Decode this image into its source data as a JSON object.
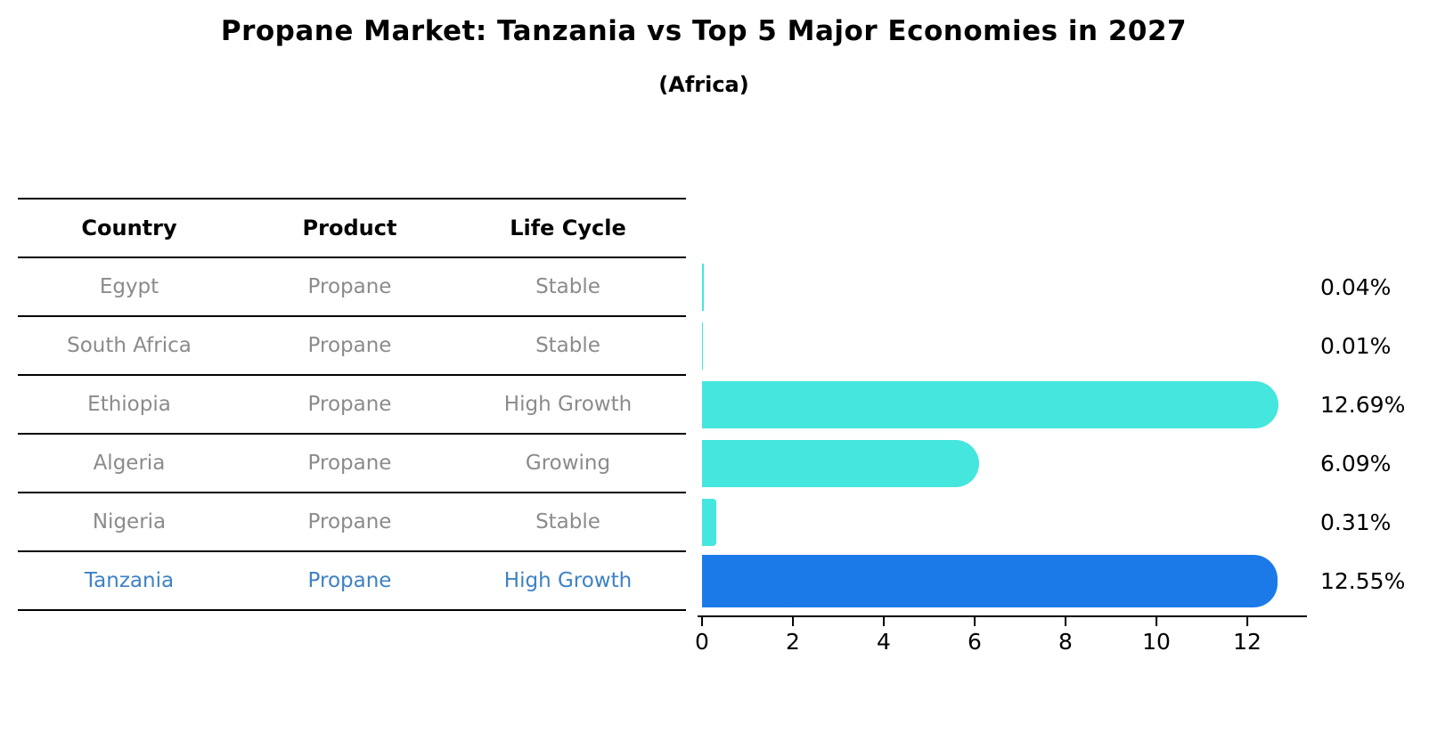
{
  "header": {
    "title": "Propane Market: Tanzania vs Top 5 Major Economies in 2027",
    "subtitle": "(Africa)"
  },
  "table": {
    "columns": [
      "Country",
      "Product",
      "Life Cycle"
    ],
    "rows": [
      {
        "country": "Egypt",
        "product": "Propane",
        "life_cycle": "Stable",
        "highlight": false
      },
      {
        "country": "South Africa",
        "product": "Propane",
        "life_cycle": "Stable",
        "highlight": false
      },
      {
        "country": "Ethiopia",
        "product": "Propane",
        "life_cycle": "High Growth",
        "highlight": false
      },
      {
        "country": "Algeria",
        "product": "Propane",
        "life_cycle": "Growing",
        "highlight": false
      },
      {
        "country": "Nigeria",
        "product": "Propane",
        "life_cycle": "Stable",
        "highlight": false
      },
      {
        "country": "Tanzania",
        "product": "Propane",
        "life_cycle": "High Growth",
        "highlight": true
      }
    ]
  },
  "chart_data": {
    "type": "bar",
    "orientation": "horizontal",
    "title": "Propane Market: Tanzania vs Top 5 Major Economies in 2027",
    "subtitle": "(Africa)",
    "categories": [
      "Egypt",
      "South Africa",
      "Ethiopia",
      "Algeria",
      "Nigeria",
      "Tanzania"
    ],
    "values": [
      0.04,
      0.01,
      12.69,
      6.09,
      0.31,
      12.55
    ],
    "value_labels": [
      "0.04%",
      "0.01%",
      "12.69%",
      "6.09%",
      "0.31%",
      "12.55%"
    ],
    "unit": "%",
    "xticks": [
      0,
      2,
      4,
      6,
      8,
      10,
      12
    ],
    "xlim": [
      0,
      13.3
    ],
    "grid": false,
    "legend": false,
    "bar_color": "#45e6dd",
    "highlight_index": 5,
    "highlight_bar_color": "#1b7ae8",
    "highlight_bar_style": "dotted-border",
    "highlight_text_color": "#3d82c4",
    "axis_color": "#000000",
    "text_color": "#8b8b8b"
  }
}
